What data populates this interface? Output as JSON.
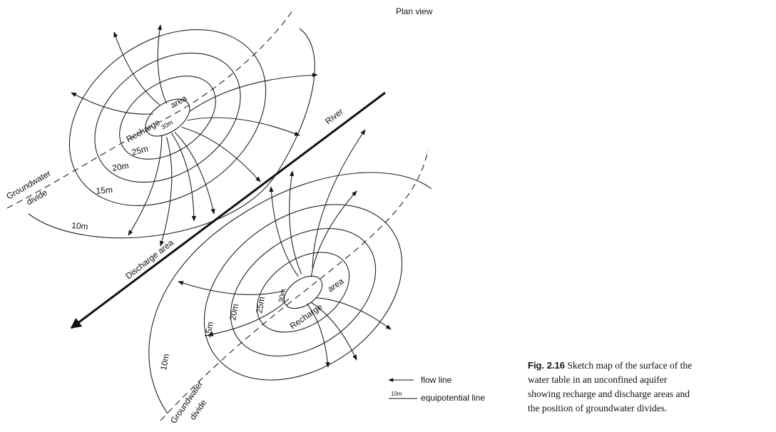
{
  "title": "Plan view",
  "river": "River",
  "discharge": "Discharge area",
  "upper": {
    "recharge": [
      "Recharge",
      "area"
    ],
    "contours": [
      "30m",
      "25m",
      "20m",
      "15m",
      "10m"
    ],
    "divide": [
      "Groundwater",
      "divide"
    ]
  },
  "lower": {
    "recharge": [
      "Recharge",
      "area"
    ],
    "contours": [
      "30m",
      "25m",
      "20m",
      "15m",
      "10m"
    ],
    "divide": [
      "Groundwater",
      "divide"
    ]
  },
  "legend": {
    "flow": "flow line",
    "equip_sample": "10m",
    "equip": "equipotential line"
  },
  "caption": {
    "label": "Fig. 2.16",
    "lines": [
      "Sketch map of the surface of the",
      "water table in an unconfined aquifer",
      "showing recharge and discharge areas and",
      "the position of groundwater divides."
    ]
  }
}
